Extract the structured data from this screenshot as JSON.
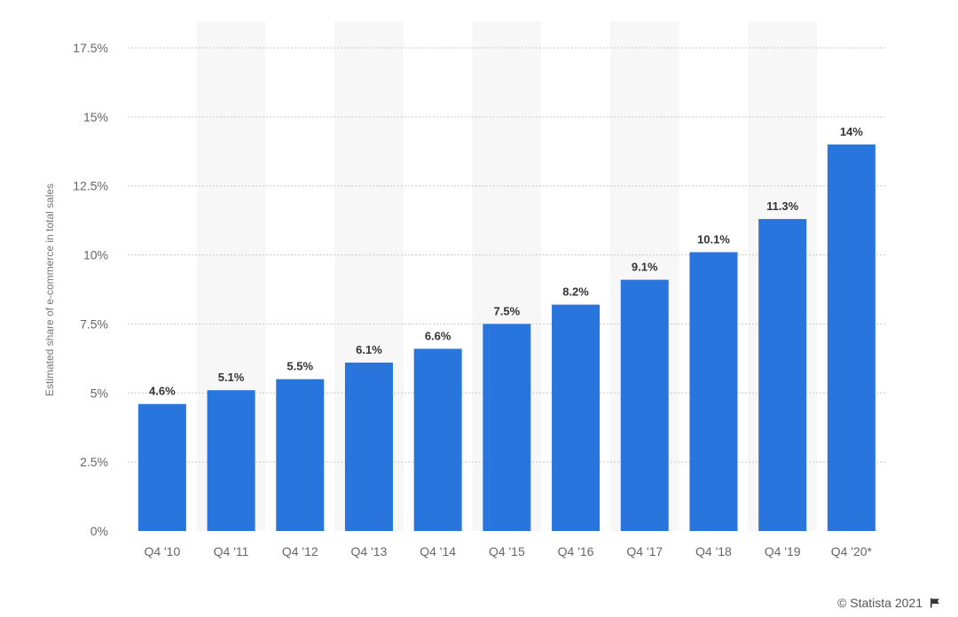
{
  "colors": {
    "bar": "#2876dd",
    "band": "#f7f7f7",
    "grid": "#c8c8c8",
    "axis_text": "#666666",
    "value_label": "#333333"
  },
  "chart_data": {
    "type": "bar",
    "categories": [
      "Q4 '10",
      "Q4 '11",
      "Q4 '12",
      "Q4 '13",
      "Q4 '14",
      "Q4 '15",
      "Q4 '16",
      "Q4 '17",
      "Q4 '18",
      "Q4 '19",
      "Q4 '20*"
    ],
    "values": [
      4.6,
      5.1,
      5.5,
      6.1,
      6.6,
      7.5,
      8.2,
      9.1,
      10.1,
      11.3,
      14
    ],
    "data_labels": [
      "4.6%",
      "5.1%",
      "5.5%",
      "6.1%",
      "6.6%",
      "7.5%",
      "8.2%",
      "9.1%",
      "10.1%",
      "11.3%",
      "14%"
    ],
    "ylabel": "Estimated share of e-commerce in total sales",
    "ylim": [
      0,
      17.5
    ],
    "yticks": [
      0,
      2.5,
      5,
      7.5,
      10,
      12.5,
      15,
      17.5
    ],
    "ytick_labels": [
      "0%",
      "2.5%",
      "5%",
      "7.5%",
      "10%",
      "12.5%",
      "15%",
      "17.5%"
    ],
    "grid": true,
    "alternating_bands": true
  },
  "credit": {
    "text": "© Statista 2021",
    "icon": "flag-icon"
  }
}
